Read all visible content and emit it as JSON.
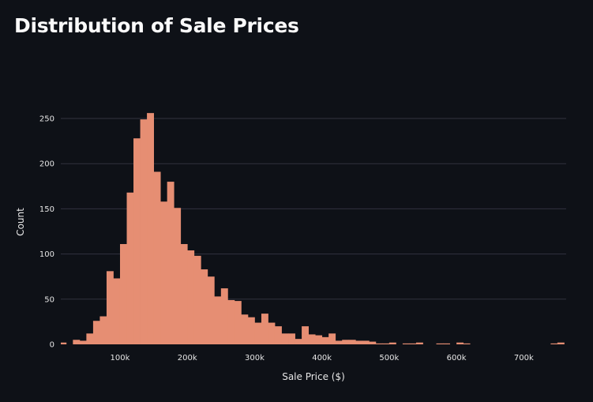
{
  "page": {
    "title": "Distribution of Sale Prices"
  },
  "colors": {
    "background": "#0e1117",
    "bar": "#e68e73",
    "grid": "#31333f",
    "text": "#fafafa"
  },
  "chart_data": {
    "type": "bar",
    "subtype": "histogram",
    "title": "",
    "xlabel": "Sale Price ($)",
    "ylabel": "Count",
    "xlim": [
      12000,
      763000
    ],
    "ylim": [
      0,
      290
    ],
    "x_ticks": [
      100000,
      200000,
      300000,
      400000,
      500000,
      600000,
      700000
    ],
    "x_tick_labels": [
      "100k",
      "200k",
      "300k",
      "400k",
      "500k",
      "600k",
      "700k"
    ],
    "y_ticks": [
      0,
      50,
      100,
      150,
      200,
      250
    ],
    "y_tick_labels": [
      "0",
      "50",
      "100",
      "150",
      "200",
      "250"
    ],
    "grid": "horizontal",
    "legend": "none",
    "bin_width": 10000,
    "bin_starts": [
      10000,
      20000,
      30000,
      40000,
      50000,
      60000,
      70000,
      80000,
      90000,
      100000,
      110000,
      120000,
      130000,
      140000,
      150000,
      160000,
      170000,
      180000,
      190000,
      200000,
      210000,
      220000,
      230000,
      240000,
      250000,
      260000,
      270000,
      280000,
      290000,
      300000,
      310000,
      320000,
      330000,
      340000,
      350000,
      360000,
      370000,
      380000,
      390000,
      400000,
      410000,
      420000,
      430000,
      440000,
      450000,
      460000,
      470000,
      480000,
      490000,
      500000,
      510000,
      520000,
      530000,
      540000,
      550000,
      560000,
      570000,
      580000,
      590000,
      600000,
      610000,
      620000,
      630000,
      640000,
      650000,
      660000,
      670000,
      680000,
      690000,
      700000,
      710000,
      720000,
      730000,
      740000,
      750000
    ],
    "values": [
      2,
      0,
      5,
      4,
      12,
      26,
      31,
      81,
      73,
      111,
      168,
      228,
      249,
      256,
      191,
      158,
      180,
      151,
      111,
      104,
      98,
      83,
      75,
      53,
      62,
      49,
      48,
      33,
      30,
      24,
      34,
      24,
      20,
      12,
      12,
      6,
      20,
      11,
      10,
      8,
      12,
      4,
      5,
      5,
      4,
      4,
      3,
      1,
      1,
      2,
      0,
      1,
      1,
      2,
      0,
      0,
      1,
      1,
      0,
      2,
      1,
      0,
      0,
      0,
      0,
      0,
      0,
      0,
      0,
      0,
      0,
      0,
      0,
      1,
      2
    ]
  }
}
